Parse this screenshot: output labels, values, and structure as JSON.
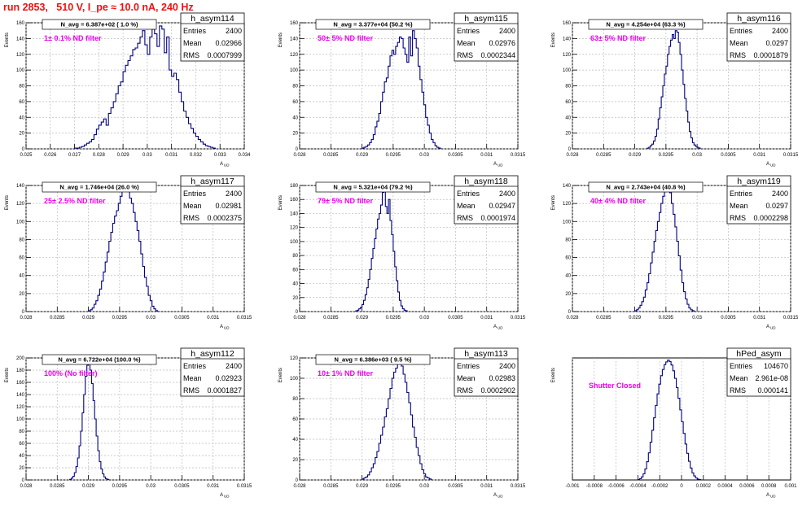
{
  "run_title": "run 2853,   510 V, I_pe ≈ 10.0 nA, 240 Hz",
  "colors": {
    "hist": "#000080",
    "title": "#ee1111",
    "filter": "#ee00ee",
    "grid": "#bbbbbb"
  },
  "common": {
    "ylabel": "Events",
    "xlabel": "A",
    "xlabel_sub": "UD",
    "stat_labels": [
      "Entries",
      "Mean",
      "RMS"
    ]
  },
  "chart_data": [
    {
      "type": "bar",
      "name": "h_asym114",
      "navg": "N_avg = 6.387e+02 ( 1.0 %)",
      "filter": "1± 0.1% ND filter",
      "entries": "2400",
      "mean": "0.02966",
      "rms": "0.0007999",
      "xlim": [
        0.025,
        0.034
      ],
      "ylim": [
        0,
        160
      ],
      "xticks": [
        "0.025",
        "0.026",
        "0.027",
        "0.028",
        "0.029",
        "0.03",
        "0.031",
        "0.032",
        "0.033",
        "0.034"
      ],
      "yticks": [
        "0",
        "20",
        "40",
        "60",
        "80",
        "100",
        "120",
        "140",
        "160"
      ],
      "bins": {
        "start": 0.027,
        "width": 0.0001,
        "values": [
          1,
          1,
          2,
          3,
          5,
          7,
          9,
          12,
          18,
          25,
          30,
          34,
          38,
          30,
          45,
          52,
          60,
          70,
          80,
          85,
          98,
          106,
          112,
          118,
          126,
          128,
          134,
          142,
          150,
          132,
          120,
          142,
          152,
          146,
          130,
          156,
          152,
          122,
          142,
          100,
          92,
          96,
          88,
          72,
          60,
          48,
          40,
          32,
          26,
          20,
          16,
          12,
          9,
          6,
          4,
          3,
          2,
          1
        ]
      }
    },
    {
      "type": "bar",
      "name": "h_asym115",
      "navg": "N_avg = 3.377e+04 (50.2 %)",
      "filter": "50± 5% ND filter",
      "entries": "2400",
      "mean": "0.02976",
      "rms": "0.0002344",
      "xlim": [
        0.028,
        0.0315
      ],
      "ylim": [
        0,
        160
      ],
      "xticks": [
        "0.028",
        "0.0285",
        "0.029",
        "0.0295",
        "0.03",
        "0.0305",
        "0.031",
        "0.0315"
      ],
      "yticks": [
        "0",
        "20",
        "40",
        "60",
        "80",
        "100",
        "120",
        "140",
        "160"
      ],
      "bins": {
        "start": 0.029,
        "width": 3e-05,
        "values": [
          1,
          2,
          3,
          5,
          8,
          12,
          18,
          28,
          35,
          45,
          60,
          72,
          85,
          90,
          105,
          118,
          125,
          120,
          130,
          135,
          142,
          140,
          128,
          120,
          110,
          142,
          118,
          150,
          140,
          128,
          105,
          88,
          72,
          56,
          40,
          30,
          20,
          12,
          8,
          4,
          2,
          1
        ]
      }
    },
    {
      "type": "bar",
      "name": "h_asym116",
      "navg": "N_avg = 4.254e+04 (63.3 %)",
      "filter": "63± 5% ND filter",
      "entries": "2400",
      "mean": "0.0297",
      "rms": "0.0001879",
      "xlim": [
        0.028,
        0.0315
      ],
      "ylim": [
        0,
        160
      ],
      "xticks": [
        "0.028",
        "0.0285",
        "0.029",
        "0.0295",
        "0.03",
        "0.0305",
        "0.031",
        "0.0315"
      ],
      "yticks": [
        "0",
        "20",
        "40",
        "60",
        "80",
        "100",
        "120",
        "140",
        "160"
      ],
      "bins": {
        "start": 0.0292,
        "width": 2.5e-05,
        "values": [
          1,
          2,
          4,
          6,
          10,
          16,
          25,
          38,
          52,
          66,
          80,
          95,
          105,
          120,
          130,
          138,
          145,
          140,
          150,
          148,
          135,
          120,
          100,
          82,
          64,
          48,
          34,
          22,
          14,
          8,
          5,
          3,
          2,
          1
        ]
      }
    },
    {
      "type": "bar",
      "name": "h_asym117",
      "navg": "N_avg = 1.746e+04 (26.0 %)",
      "filter": "25± 2.5% ND filter",
      "entries": "2400",
      "mean": "0.02981",
      "rms": "0.0002375",
      "xlim": [
        0.028,
        0.0315
      ],
      "ylim": [
        0,
        140
      ],
      "xticks": [
        "0.028",
        "0.0285",
        "0.029",
        "0.0295",
        "0.03",
        "0.0305",
        "0.031",
        "0.0315"
      ],
      "yticks": [
        "0",
        "20",
        "40",
        "60",
        "80",
        "100",
        "120",
        "140"
      ],
      "bins": {
        "start": 0.029,
        "width": 3e-05,
        "values": [
          1,
          2,
          4,
          8,
          12,
          18,
          25,
          34,
          44,
          55,
          66,
          78,
          88,
          98,
          106,
          112,
          120,
          128,
          135,
          138,
          140,
          135,
          126,
          120,
          110,
          100,
          90,
          78,
          64,
          50,
          38,
          28,
          18,
          12,
          6,
          3,
          1
        ]
      }
    },
    {
      "type": "bar",
      "name": "h_asym118",
      "navg": "N_avg = 5.321e+04 (79.2 %)",
      "filter": "79± 5% ND filter",
      "entries": "2400",
      "mean": "0.02947",
      "rms": "0.0001974",
      "xlim": [
        0.028,
        0.0315
      ],
      "ylim": [
        0,
        180
      ],
      "xticks": [
        "0.028",
        "0.0285",
        "0.029",
        "0.0295",
        "0.03",
        "0.0305",
        "0.031",
        "0.0315"
      ],
      "yticks": [
        "0",
        "20",
        "40",
        "60",
        "80",
        "100",
        "120",
        "140",
        "160",
        "180"
      ],
      "bins": {
        "start": 0.0289,
        "width": 2.5e-05,
        "values": [
          1,
          2,
          4,
          6,
          10,
          16,
          24,
          34,
          46,
          60,
          76,
          90,
          104,
          118,
          132,
          140,
          152,
          170,
          176,
          150,
          140,
          160,
          130,
          110,
          86,
          64,
          44,
          28,
          16,
          8,
          4,
          2,
          1
        ]
      }
    },
    {
      "type": "bar",
      "name": "h_asym119",
      "navg": "N_avg = 2.743e+04 (40.8 %)",
      "filter": "40± 4% ND filter",
      "entries": "2400",
      "mean": "0.0297",
      "rms": "0.0002298",
      "xlim": [
        0.028,
        0.0315
      ],
      "ylim": [
        0,
        140
      ],
      "xticks": [
        "0.028",
        "0.0285",
        "0.029",
        "0.0295",
        "0.03",
        "0.0305",
        "0.031",
        "0.0315"
      ],
      "yticks": [
        "0",
        "20",
        "40",
        "60",
        "80",
        "100",
        "120",
        "140"
      ],
      "bins": {
        "start": 0.029,
        "width": 2.8e-05,
        "values": [
          1,
          2,
          4,
          7,
          11,
          16,
          24,
          32,
          42,
          54,
          66,
          78,
          90,
          100,
          110,
          120,
          128,
          134,
          138,
          140,
          132,
          120,
          108,
          94,
          78,
          62,
          46,
          32,
          22,
          14,
          8,
          4,
          2,
          1
        ]
      }
    },
    {
      "type": "bar",
      "name": "h_asym112",
      "navg": "N_avg = 6.722e+04 (100.0 %)",
      "filter": "100% (No filter)",
      "entries": "2400",
      "mean": "0.02923",
      "rms": "0.0001827",
      "xlim": [
        0.028,
        0.0315
      ],
      "ylim": [
        0,
        200
      ],
      "xticks": [
        "0.028",
        "0.0285",
        "0.029",
        "0.0295",
        "0.03",
        "0.0305",
        "0.031",
        "0.0315"
      ],
      "yticks": [
        "0",
        "20",
        "40",
        "60",
        "80",
        "100",
        "120",
        "140",
        "160",
        "180",
        "200"
      ],
      "bins": {
        "start": 0.0287,
        "width": 2.5e-05,
        "values": [
          1,
          3,
          6,
          12,
          22,
          36,
          56,
          80,
          110,
          140,
          170,
          188,
          190,
          180,
          158,
          130,
          100,
          72,
          48,
          30,
          18,
          10,
          5,
          2,
          1
        ]
      }
    },
    {
      "type": "bar",
      "name": "h_asym113",
      "navg": "N_avg = 6.386e+03 ( 9.5 %)",
      "filter": "10± 1% ND filter",
      "entries": "2400",
      "mean": "0.02983",
      "rms": "0.0002902",
      "xlim": [
        0.028,
        0.0315
      ],
      "ylim": [
        0,
        120
      ],
      "xticks": [
        "0.028",
        "0.0285",
        "0.029",
        "0.0295",
        "0.03",
        "0.0305",
        "0.031",
        "0.0315"
      ],
      "yticks": [
        "0",
        "20",
        "40",
        "60",
        "80",
        "100",
        "120"
      ],
      "bins": {
        "start": 0.029,
        "width": 3e-05,
        "values": [
          1,
          2,
          3,
          5,
          8,
          12,
          16,
          22,
          28,
          36,
          44,
          52,
          62,
          70,
          80,
          90,
          100,
          106,
          110,
          114,
          118,
          112,
          104,
          96,
          86,
          76,
          64,
          52,
          42,
          32,
          24,
          16,
          10,
          6,
          3,
          2,
          1
        ]
      }
    },
    {
      "type": "bar",
      "name": "hPed_asym",
      "navg": "",
      "filter": "Shutter Closed",
      "entries": "104670",
      "mean": "2.961e-08",
      "rms": "0.000141",
      "xlim": [
        -0.001,
        0.001
      ],
      "ylim": [
        0,
        5500
      ],
      "xticks": [
        "-0.001",
        "-0.0008",
        "-0.0006",
        "-0.0004",
        "-0.0002",
        "0",
        "0.0002",
        "0.0004",
        "0.0006",
        "0.0008",
        "0.001"
      ],
      "yticks": [],
      "bins": {
        "start": -0.0004,
        "width": 1.6e-05,
        "values": [
          20,
          60,
          140,
          280,
          500,
          820,
          1220,
          1700,
          2240,
          2800,
          3360,
          3880,
          4320,
          4700,
          4980,
          5200,
          5320,
          5400,
          5340,
          5180,
          4920,
          4580,
          4160,
          3680,
          3160,
          2620,
          2100,
          1620,
          1200,
          840,
          540,
          320,
          180,
          90,
          40,
          15
        ]
      }
    }
  ]
}
